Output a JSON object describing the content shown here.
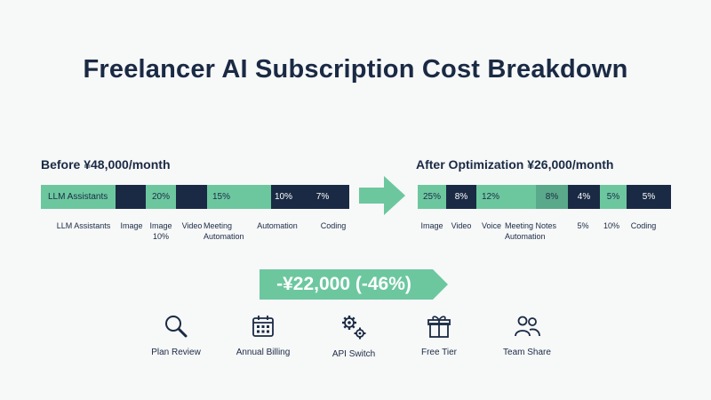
{
  "title": "Freelancer AI Subscription Cost Breakdown",
  "colors": {
    "navy": "#1a2a44",
    "green": "#6cc79f",
    "green_dark": "#5aa98a",
    "background": "#f7f8f8"
  },
  "before": {
    "heading": "Before ¥48,000/month",
    "bar_labels": [
      "LLM Assistants",
      "",
      "20%",
      "",
      "15%",
      "",
      "10%",
      "7%"
    ],
    "category_labels": [
      "LLM Assistants",
      "Image",
      "Image\n10%",
      "Video",
      "Meeting\nAutomation",
      "Automation",
      "Coding"
    ]
  },
  "after": {
    "heading": "After Optimization ¥26,000/month",
    "bar_labels": [
      "25%",
      "8%",
      "12%",
      "",
      "8%",
      "4%",
      "5%",
      "5%"
    ],
    "category_labels": [
      "Image",
      "Video",
      "Voice",
      "Meeting Notes\nAutomation",
      "5%",
      "10%",
      "Coding"
    ]
  },
  "savings": "-¥22,000 (-46%)",
  "tips": [
    {
      "label": "Plan Review",
      "icon": "magnifier-icon"
    },
    {
      "label": "Annual Billing",
      "icon": "calendar-icon"
    },
    {
      "label": "API Switch",
      "icon": "gears-icon"
    },
    {
      "label": "Free Tier",
      "icon": "gift-icon"
    },
    {
      "label": "Team Share",
      "icon": "people-icon"
    }
  ]
}
